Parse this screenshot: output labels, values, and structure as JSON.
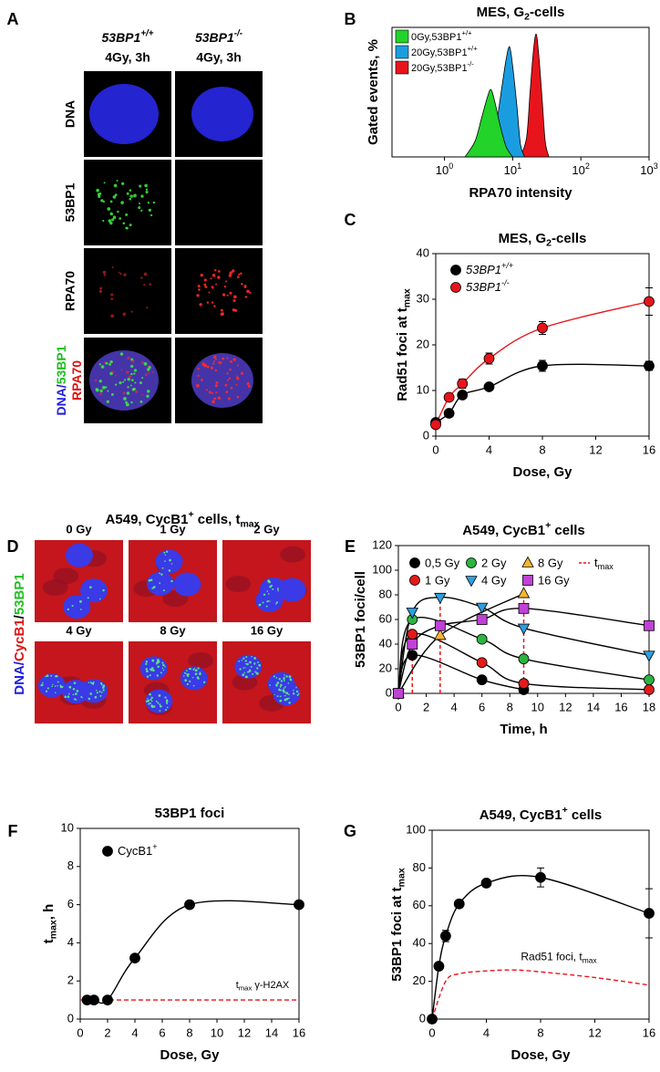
{
  "panel_labels": [
    "A",
    "B",
    "C",
    "D",
    "E",
    "F",
    "G"
  ],
  "panel_a": {
    "columns": [
      {
        "genotype": [
          {
            "text": "53BP1"
          },
          {
            "sup": "+/+"
          }
        ],
        "condition": "4Gy, 3h"
      },
      {
        "genotype": [
          {
            "text": "53BP1"
          },
          {
            "sup": "-/-"
          }
        ],
        "condition": "4Gy, 3h"
      }
    ],
    "rows": [
      "DNA",
      "53BP1",
      "RPA70"
    ],
    "merge_label": [
      [
        {
          "text": "DNA/",
          "color": "#2020e0"
        },
        {
          "text": "53BP1",
          "color": "#1fbf1f"
        }
      ],
      [
        {
          "text": "RPA70",
          "color": "#e01010"
        }
      ]
    ]
  },
  "panel_d": {
    "title": [
      {
        "text": "A549, CycB1"
      },
      {
        "sup": "+"
      },
      {
        "text": " cells, t"
      },
      {
        "sub": "max"
      }
    ],
    "labels": [
      "0 Gy",
      "1 Gy",
      "2 Gy",
      "4 Gy",
      "8 Gy",
      "16 Gy"
    ],
    "side_label": [
      {
        "text": "DNA/",
        "color": "#2020e0"
      },
      {
        "text": "CycB1",
        "color": "#e01010"
      },
      {
        "text": "/",
        "color": "#000000"
      },
      {
        "text": "53BP1",
        "color": "#1fbf1f"
      }
    ]
  },
  "chart_data": [
    {
      "type": "area",
      "title": [
        {
          "text": "MES,  G"
        },
        {
          "sub": "2"
        },
        {
          "text": "-cells"
        }
      ],
      "xlabel": "RPA70 intensity",
      "ylabel": "Gated events, %",
      "xscale": "log",
      "xlim": [
        0.17,
        1000
      ],
      "xticks": [
        {
          "value": 1,
          "label": [
            {
              "text": "10"
            },
            {
              "sup": "0"
            }
          ]
        },
        {
          "value": 10,
          "label": [
            {
              "text": "10"
            },
            {
              "sup": "1"
            }
          ]
        },
        {
          "value": 100,
          "label": [
            {
              "text": "10"
            },
            {
              "sup": "2"
            }
          ]
        },
        {
          "value": 1000,
          "label": [
            {
              "text": "10"
            },
            {
              "sup": "3"
            }
          ]
        }
      ],
      "ylim": [
        0,
        100
      ],
      "series": [
        {
          "name": [
            {
              "text": "0Gy,53BP1"
            },
            {
              "sup": "+/+"
            }
          ],
          "color": "#22d32a",
          "x": [
            2,
            2.8,
            3.5,
            4.2,
            4.8,
            5.5,
            6.5,
            8,
            10
          ],
          "values": [
            0,
            12,
            30,
            45,
            52,
            42,
            25,
            8,
            0
          ]
        },
        {
          "name": [
            {
              "text": "20Gy,53BP1"
            },
            {
              "sup": "+/+"
            }
          ],
          "color": "#1a9de0",
          "x": [
            4,
            5.5,
            7,
            8,
            9,
            10,
            11.5,
            13,
            15
          ],
          "values": [
            0,
            20,
            55,
            75,
            85,
            70,
            40,
            10,
            0
          ]
        },
        {
          "name": [
            {
              "text": "20Gy,53BP1"
            },
            {
              "sup": "-/-"
            }
          ],
          "color": "#e8141b",
          "x": [
            13,
            16,
            18,
            20,
            22,
            24,
            27,
            30,
            34
          ],
          "values": [
            0,
            15,
            50,
            80,
            95,
            80,
            45,
            12,
            0
          ]
        }
      ]
    },
    {
      "type": "scatter",
      "title": [
        {
          "text": "MES,  G"
        },
        {
          "sub": "2"
        },
        {
          "text": "-cells"
        }
      ],
      "xlabel": "Dose, Gy",
      "ylabel": [
        {
          "text": "Rad51 foci at t"
        },
        {
          "sub": "max"
        }
      ],
      "x": [
        0,
        1,
        2,
        4,
        8,
        16
      ],
      "xlim": [
        0,
        16
      ],
      "xticks": [
        0,
        4,
        8,
        12,
        16
      ],
      "ylim": [
        0,
        40
      ],
      "yticks": [
        0,
        10,
        20,
        30,
        40
      ],
      "series": [
        {
          "name": [
            {
              "text": "53BP1"
            },
            {
              "sup": "+/+"
            }
          ],
          "color": "#000000",
          "line_color": "#000000",
          "marker": "circle",
          "values": [
            3,
            5,
            9,
            10.8,
            15.4,
            15.4
          ],
          "errors": [
            0.4,
            0.5,
            0.8,
            0.6,
            1.2,
            1
          ]
        },
        {
          "name": [
            {
              "text": "53BP1"
            },
            {
              "sup": "-/-"
            }
          ],
          "color": "#e8141b",
          "line_color": "#e8141b",
          "marker": "circle",
          "values": [
            2.5,
            8.5,
            11.5,
            17,
            23.7,
            29.5
          ],
          "errors": [
            0.5,
            0.6,
            1,
            1.2,
            1.4,
            3
          ]
        }
      ]
    },
    {
      "type": "scatter",
      "title": [
        {
          "text": "A549, CycB1"
        },
        {
          "sup": "+"
        },
        {
          "text": " cells"
        }
      ],
      "xlabel": "Time, h",
      "ylabel": "53BP1 foci/cell",
      "xlim": [
        0,
        18
      ],
      "xticks": [
        0,
        2,
        4,
        6,
        8,
        10,
        12,
        14,
        16,
        18
      ],
      "ylim": [
        0,
        120
      ],
      "yticks": [
        0,
        20,
        40,
        60,
        80,
        100,
        120
      ],
      "series": [
        {
          "name": "0,5 Gy",
          "color": "#000000",
          "line_color": "#000000",
          "marker": "circle",
          "x": [
            0,
            1,
            6,
            9
          ],
          "values": [
            0,
            31,
            11,
            3
          ]
        },
        {
          "name": "1 Gy",
          "color": "#e21b1b",
          "line_color": "#000000",
          "marker": "circle",
          "x": [
            0,
            1,
            6,
            9,
            18
          ],
          "values": [
            0,
            48,
            25,
            8,
            3
          ]
        },
        {
          "name": "2 Gy",
          "color": "#2bb540",
          "line_color": "#000000",
          "marker": "circle",
          "x": [
            0,
            1,
            6,
            9,
            18
          ],
          "values": [
            0,
            60,
            44,
            28,
            11
          ]
        },
        {
          "name": "4 Gy",
          "color": "#2d9ee0",
          "line_color": "#000000",
          "marker": "triangle-down",
          "x": [
            0,
            1,
            3,
            6,
            9,
            18
          ],
          "values": [
            0,
            66,
            78,
            70,
            53,
            31
          ]
        },
        {
          "name": "8 Gy",
          "color": "#f2b630",
          "line_color": "#000000",
          "marker": "triangle-up",
          "x": [
            0,
            3,
            9
          ],
          "values": [
            0,
            47,
            81
          ]
        },
        {
          "name": "16 Gy",
          "color": "#c040d8",
          "line_color": "#000000",
          "marker": "square",
          "x": [
            0,
            1,
            3,
            6,
            9,
            18
          ],
          "values": [
            0,
            40,
            55,
            60,
            69,
            55
          ]
        },
        {
          "name": [
            {
              "text": "t"
            },
            {
              "sub": "max"
            }
          ],
          "color": "#e8141b",
          "style": "droplines",
          "x": [
            1,
            3,
            9
          ],
          "values": [
            48,
            78,
            81
          ]
        }
      ]
    },
    {
      "type": "scatter",
      "title": "53BP1 foci",
      "xlabel": "Dose, Gy",
      "ylabel": [
        {
          "text": "t"
        },
        {
          "sub": "max"
        },
        {
          "text": ", h"
        }
      ],
      "x": [
        0.5,
        1,
        2,
        4,
        8,
        16
      ],
      "xlim": [
        0,
        16
      ],
      "xticks": [
        0,
        2,
        4,
        6,
        8,
        10,
        12,
        14,
        16
      ],
      "ylim": [
        0,
        10
      ],
      "yticks": [
        0,
        2,
        4,
        6,
        8,
        10
      ],
      "series": [
        {
          "name": [
            {
              "text": "CycB1"
            },
            {
              "sup": "+"
            }
          ],
          "color": "#000000",
          "line_color": "#000000",
          "marker": "circle",
          "values": [
            1,
            1,
            1,
            3.2,
            6,
            6
          ]
        }
      ],
      "ref_line": {
        "value": 1,
        "color": "#e8141b",
        "label": [
          {
            "text": "t"
          },
          {
            "sub": "max"
          },
          {
            "text": " γ-H2AX"
          }
        ]
      }
    },
    {
      "type": "scatter",
      "title": [
        {
          "text": "A549, CycB1"
        },
        {
          "sup": "+"
        },
        {
          "text": " cells"
        }
      ],
      "xlabel": "Dose, Gy",
      "ylabel": [
        {
          "text": "53BP1 foci at t"
        },
        {
          "sub": "max"
        }
      ],
      "x": [
        0,
        0.5,
        1,
        2,
        4,
        8,
        16
      ],
      "xlim": [
        0,
        16
      ],
      "xticks": [
        0,
        4,
        8,
        12,
        16
      ],
      "ylim": [
        0,
        100
      ],
      "yticks": [
        0,
        20,
        40,
        60,
        80,
        100
      ],
      "series": [
        {
          "name": null,
          "color": "#000000",
          "line_color": "#000000",
          "marker": "circle",
          "values": [
            0,
            28,
            44,
            61,
            72,
            75,
            56
          ],
          "errors": [
            0,
            2,
            3,
            2,
            2,
            5,
            13
          ]
        }
      ],
      "ref_curve": {
        "color": "#e8141b",
        "label": [
          {
            "text": "Rad51 foci, t"
          },
          {
            "sub": "max"
          }
        ],
        "x": [
          0,
          1,
          2,
          4,
          6,
          8,
          12,
          16
        ],
        "values": [
          0,
          20,
          24,
          25.5,
          26,
          25,
          22,
          18
        ]
      }
    }
  ]
}
